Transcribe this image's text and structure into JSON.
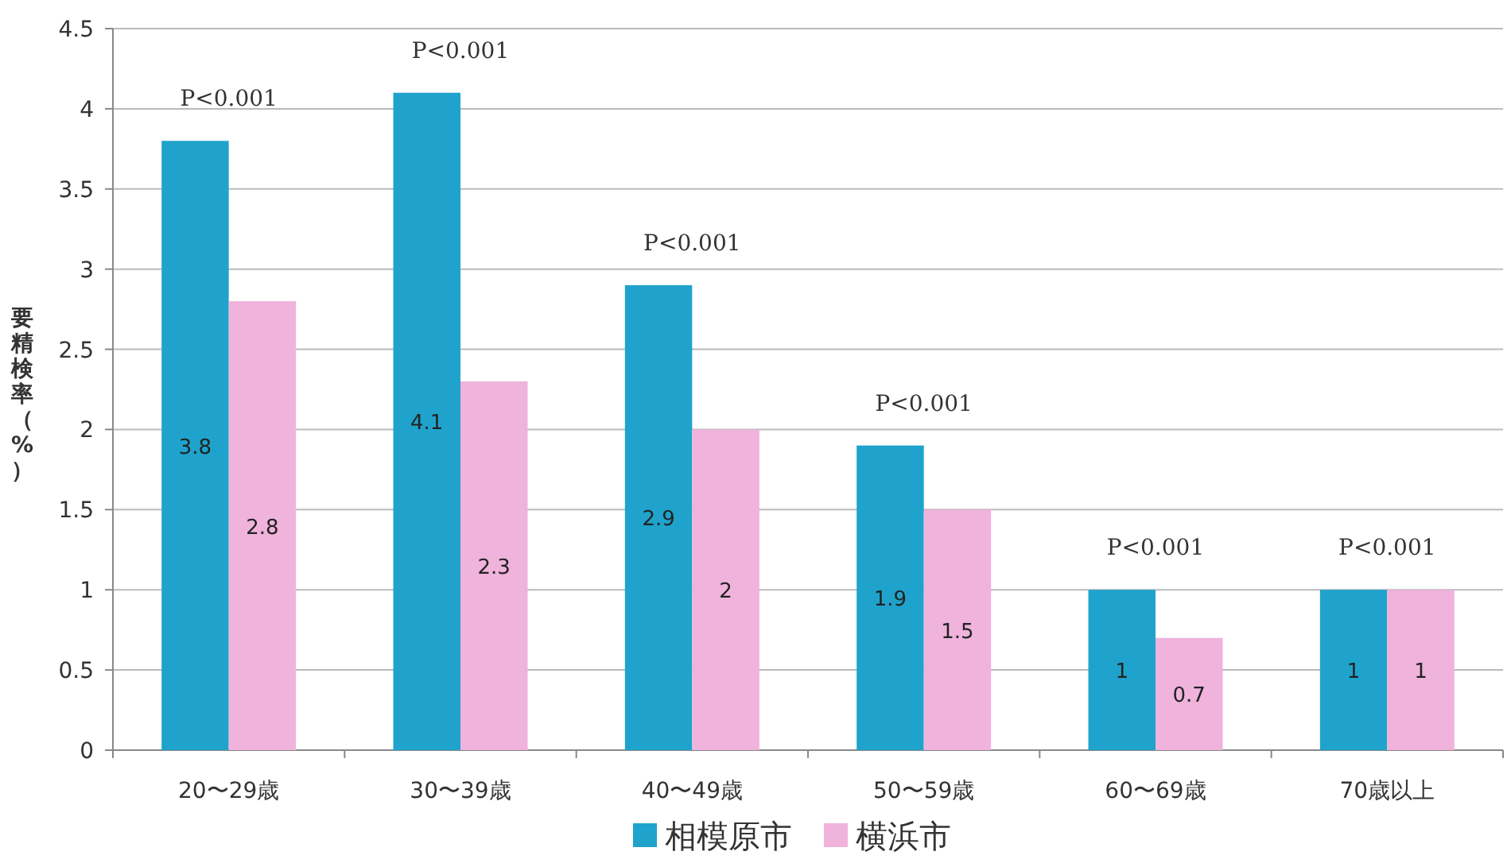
{
  "chart_data": {
    "type": "bar",
    "ylabel": "要精検率（%）",
    "categories": [
      "20〜29歳",
      "30〜39歳",
      "40〜49歳",
      "50〜59歳",
      "60〜69歳",
      "70歳以上"
    ],
    "series": [
      {
        "name": "相模原市",
        "color": "#1fa3cc",
        "values": [
          3.8,
          4.1,
          2.9,
          1.9,
          1,
          1
        ]
      },
      {
        "name": "横浜市",
        "color": "#efb3dc",
        "values": [
          2.8,
          2.3,
          2,
          1.5,
          0.7,
          1
        ]
      }
    ],
    "ylim": [
      0,
      4.5
    ],
    "yticks": [
      0,
      0.5,
      1,
      1.5,
      2,
      2.5,
      3,
      3.5,
      4,
      4.5
    ],
    "grid": "y",
    "legend": "bottom",
    "data_labels": true,
    "annotations": [
      "P<0.001",
      "P<0.001",
      "P<0.001",
      "P<0.001",
      "P<0.001",
      "P<0.001"
    ]
  }
}
